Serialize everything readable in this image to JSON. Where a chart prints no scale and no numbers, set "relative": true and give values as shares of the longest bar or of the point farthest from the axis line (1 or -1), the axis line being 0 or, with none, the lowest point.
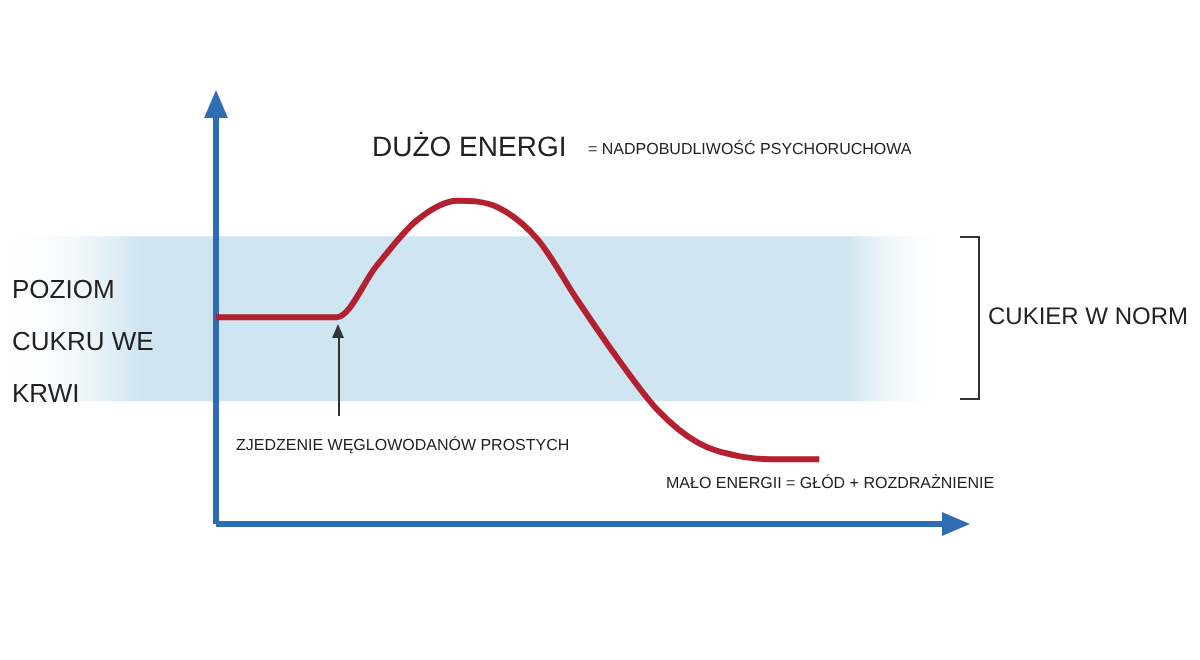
{
  "chart_data": {
    "type": "line",
    "title": "DUŻO ENERGI",
    "ylabel": "POZIOM CUKRU WE KRWI",
    "relative": true,
    "annotations": [
      "= NADPOBUDLIWOŚĆ PSYCHORUCHOWA",
      "ZJEDZENIE WĘGLOWODANÓW PROSTYCH",
      "MAŁO ENERGII = GŁÓD + ROZDRAŻNIENIE"
    ],
    "categories": [
      null,
      null,
      null,
      null,
      null,
      null,
      null,
      null,
      null,
      null,
      null,
      null,
      null,
      null,
      null,
      null,
      null,
      null,
      null
    ],
    "series": [
      {
        "color": "#b3202f",
        "values": [
          0.64,
          0.64,
          0.64,
          0.64,
          0.8,
          0.94,
          1.0,
          0.98,
          0.88,
          0.69,
          0.51,
          0.35,
          0.25,
          0.21,
          0.2,
          0.2,
          null,
          null,
          null
        ]
      }
    ],
    "bands": [
      {
        "axis": "y",
        "from": 0.38,
        "to": 0.89,
        "label": "CUKIER W NORM",
        "color": "#cfe5f1"
      }
    ],
    "legend": false,
    "marker": "none",
    "line_style": "solid"
  }
}
